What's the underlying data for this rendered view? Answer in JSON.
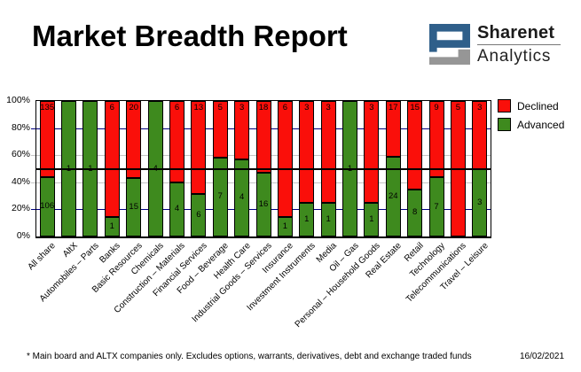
{
  "header": {
    "title": "Market Breadth Report",
    "logo": {
      "name_top": "Sharenet",
      "name_bottom": "Analytics",
      "blue": "#2f5f8a",
      "gray": "#969696"
    }
  },
  "chart_data": {
    "type": "bar",
    "stacked": "percent",
    "title": "Market Breadth Report",
    "categories": [
      "All share",
      "AltX",
      "Automobiles – Parts",
      "Banks",
      "Basic Resources",
      "Chemicals",
      "Construction – Materials",
      "Financial Services",
      "Food – Beverage",
      "Health Care",
      "Industrial Goods – Services",
      "Insurance",
      "Investment Instruments",
      "Media",
      "Oil – Gas",
      "Personal – Household Goods",
      "Real Estate",
      "Retail",
      "Technology",
      "Telecommunications",
      "Travel – Leisure"
    ],
    "series": [
      {
        "name": "Declined",
        "color": "#fa0f0a",
        "values": [
          135,
          0,
          0,
          6,
          20,
          0,
          6,
          13,
          5,
          3,
          18,
          6,
          3,
          3,
          0,
          3,
          17,
          15,
          9,
          5,
          3
        ]
      },
      {
        "name": "Advanced",
        "color": "#3e8a1e",
        "values": [
          106,
          1,
          1,
          1,
          15,
          4,
          4,
          6,
          7,
          4,
          16,
          1,
          1,
          1,
          1,
          1,
          24,
          8,
          7,
          0,
          3
        ]
      }
    ],
    "y_ticks": [
      "0%",
      "20%",
      "40%",
      "60%",
      "80%",
      "100%"
    ],
    "ylim": [
      0,
      100
    ],
    "grid": {
      "percent_lines": [
        {
          "pct": 80,
          "color": "#000080"
        },
        {
          "pct": 60,
          "color": "#c4c4c4"
        },
        {
          "pct": 40,
          "color": "#c4c4c4"
        },
        {
          "pct": 20,
          "color": "#000080"
        }
      ],
      "reference_line_pct": 50,
      "reference_line_color": "#000000"
    },
    "legend_position": "top-right",
    "bar_labels": "values shown inside segments"
  },
  "legend": {
    "items": [
      {
        "label": "Declined",
        "color": "#fa0f0a"
      },
      {
        "label": "Advanced",
        "color": "#3e8a1e"
      }
    ]
  },
  "footer": {
    "note": "* Main board and ALTX companies only. Excludes options, warrants, derivatives, debt and exchange traded funds",
    "date": "16/02/2021"
  }
}
